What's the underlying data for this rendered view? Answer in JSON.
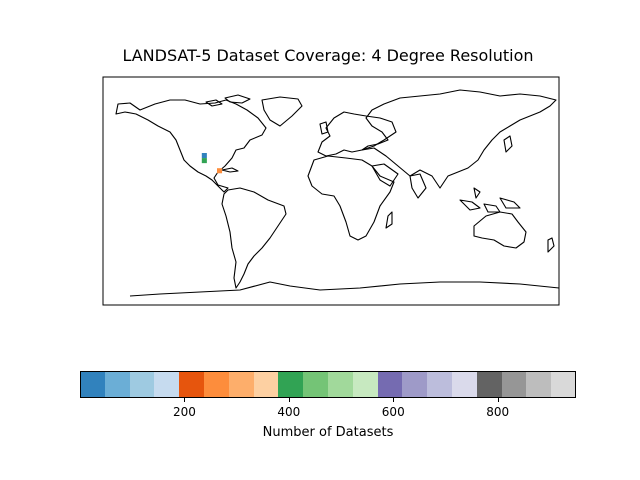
{
  "title": "LANDSAT-5 Dataset Coverage: 4 Degree Resolution",
  "chart_data": {
    "type": "heatmap",
    "title": "LANDSAT-5 Dataset Coverage: 4 Degree Resolution",
    "projection": "equirectangular world map",
    "cells": [
      {
        "lon": -102,
        "lat": 26,
        "color": "#3182bd"
      },
      {
        "lon": -102,
        "lat": 22,
        "color": "#31a354"
      },
      {
        "lon": -90,
        "lat": 14,
        "color": "#fd8d3c"
      }
    ],
    "colorbar": {
      "label": "Number of Datasets",
      "range": [
        0,
        950
      ],
      "ticks": [
        200,
        400,
        600,
        800
      ],
      "colors": [
        "#3182bd",
        "#6baed6",
        "#9ecae1",
        "#c6dbef",
        "#e6550d",
        "#fd8d3c",
        "#fdae6b",
        "#fdd0a2",
        "#31a354",
        "#74c476",
        "#a1d99b",
        "#c7e9c0",
        "#756bb1",
        "#9e9ac8",
        "#bcbddc",
        "#dadaeb",
        "#636363",
        "#969696",
        "#bdbdbd",
        "#d9d9d9"
      ]
    }
  }
}
